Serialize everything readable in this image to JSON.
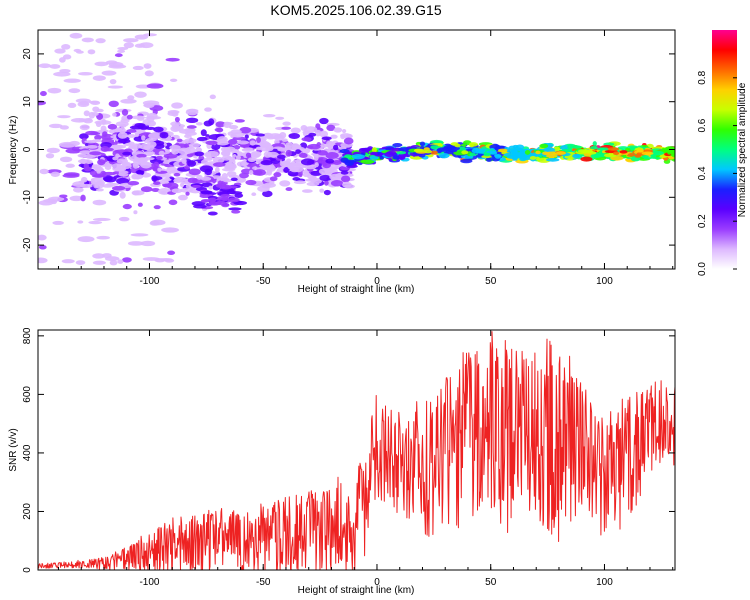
{
  "title": "KOM5.2025.106.02.39.G15",
  "colors": {
    "snr_line": "#ee2222",
    "colormap": [
      "#ffffff",
      "#ddb8ff",
      "#9a3cff",
      "#5a00ff",
      "#1a20ff",
      "#00c8ff",
      "#00ff80",
      "#30ff00",
      "#c8ff00",
      "#ffd000",
      "#ff6600",
      "#ff0000",
      "#ff0090"
    ]
  },
  "chart_data": [
    {
      "type": "heatmap",
      "xlabel": "Height of straight line (km)",
      "ylabel": "Frequency (Hz)",
      "xlim": [
        -149,
        131
      ],
      "ylim": [
        -25,
        25
      ],
      "xticks": [
        "-100",
        "-50",
        "0",
        "50",
        "100"
      ],
      "yticks": [
        "-20",
        "-10",
        "0",
        "10",
        "20"
      ],
      "colorbar": {
        "label": "Normalized spectral amplitude",
        "range": [
          0,
          1
        ],
        "ticks": [
          "0.0",
          "0.2",
          "0.4",
          "0.6",
          "0.8"
        ]
      },
      "ridge_frequency_hz": [
        {
          "x": -100,
          "f": -1.0
        },
        {
          "x": -70,
          "f": -0.5
        },
        {
          "x": -40,
          "f": -1.5
        },
        {
          "x": -12,
          "f": -2.0
        },
        {
          "x": 0,
          "f": -1.0
        },
        {
          "x": 25,
          "f": 0.0
        },
        {
          "x": 60,
          "f": -0.8
        },
        {
          "x": 100,
          "f": -0.5
        },
        {
          "x": 130,
          "f": -0.8
        }
      ]
    },
    {
      "type": "line",
      "xlabel": "Height of straight line (km)",
      "ylabel": "SNR (v/v)",
      "xlim": [
        -149,
        131
      ],
      "ylim": [
        0,
        820
      ],
      "xticks": [
        "-100",
        "-50",
        "0",
        "50",
        "100"
      ],
      "yticks": [
        "0",
        "200",
        "400",
        "600",
        "800"
      ],
      "series": [
        {
          "x": [
            -149,
            -140,
            -130,
            -120,
            -110,
            -100,
            -90,
            -80,
            -70,
            -60,
            -50,
            -40,
            -30,
            -20,
            -15,
            -10,
            -8,
            -5,
            -2,
            0,
            5,
            10,
            20,
            30,
            40,
            50,
            60,
            70,
            80,
            90,
            100,
            110,
            120,
            125,
            130
          ],
          "values": [
            15,
            15,
            20,
            20,
            40,
            55,
            75,
            85,
            100,
            90,
            100,
            110,
            130,
            120,
            150,
            80,
            240,
            180,
            360,
            420,
            380,
            330,
            350,
            370,
            430,
            490,
            420,
            460,
            430,
            400,
            300,
            360,
            480,
            500,
            490
          ],
          "peak_values": [
            25,
            25,
            35,
            45,
            80,
            140,
            180,
            200,
            220,
            210,
            230,
            250,
            280,
            300,
            330,
            200,
            390,
            440,
            560,
            610,
            560,
            540,
            600,
            700,
            760,
            820,
            780,
            790,
            810,
            650,
            530,
            600,
            640,
            660,
            650
          ]
        }
      ]
    }
  ]
}
